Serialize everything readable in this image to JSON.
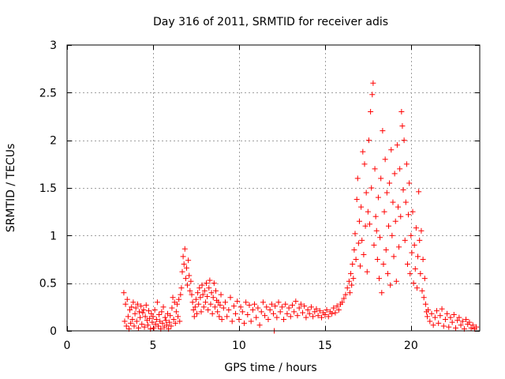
{
  "chart_data": {
    "type": "scatter",
    "title": "Day 316 of 2011, SRMTID for receiver adis",
    "xlabel": "GPS time / hours",
    "ylabel": "SRMTID / TECUs",
    "xlim": [
      0,
      24
    ],
    "ylim": [
      0,
      3
    ],
    "xticks": [
      0,
      5,
      10,
      15,
      20
    ],
    "yticks": [
      0,
      0.5,
      1,
      1.5,
      2,
      2.5,
      3
    ],
    "grid": true,
    "marker": "+",
    "color": "#ff0000",
    "series": [
      {
        "name": "SRMTID",
        "points": [
          [
            3.3,
            0.4
          ],
          [
            3.35,
            0.1
          ],
          [
            3.4,
            0.28
          ],
          [
            3.45,
            0.05
          ],
          [
            3.5,
            0.33
          ],
          [
            3.55,
            0.15
          ],
          [
            3.6,
            0.02
          ],
          [
            3.65,
            0.22
          ],
          [
            3.7,
            0.08
          ],
          [
            3.75,
            0.25
          ],
          [
            3.8,
            0.12
          ],
          [
            3.85,
            0.3
          ],
          [
            3.9,
            0.05
          ],
          [
            3.95,
            0.18
          ],
          [
            4.0,
            0.24
          ],
          [
            4.05,
            0.1
          ],
          [
            4.1,
            0.28
          ],
          [
            4.15,
            0.03
          ],
          [
            4.2,
            0.2
          ],
          [
            4.25,
            0.14
          ],
          [
            4.3,
            0.26
          ],
          [
            4.35,
            0.07
          ],
          [
            4.4,
            0.19
          ],
          [
            4.45,
            0.22
          ],
          [
            4.5,
            0.04
          ],
          [
            4.55,
            0.15
          ],
          [
            4.6,
            0.27
          ],
          [
            4.65,
            0.11
          ],
          [
            4.7,
            0.06
          ],
          [
            4.75,
            0.21
          ],
          [
            4.8,
            0.13
          ],
          [
            4.85,
            0.02
          ],
          [
            4.9,
            0.18
          ],
          [
            4.95,
            0.09
          ],
          [
            5.0,
            0.15
          ],
          [
            5.05,
            0.03
          ],
          [
            5.1,
            0.22
          ],
          [
            5.15,
            0.07
          ],
          [
            5.2,
            0.12
          ],
          [
            5.25,
            0.3
          ],
          [
            5.3,
            0.05
          ],
          [
            5.35,
            0.17
          ],
          [
            5.4,
            0.1
          ],
          [
            5.45,
            0.02
          ],
          [
            5.5,
            0.2
          ],
          [
            5.55,
            0.08
          ],
          [
            5.6,
            0.25
          ],
          [
            5.65,
            0.04
          ],
          [
            5.7,
            0.14
          ],
          [
            5.75,
            0.11
          ],
          [
            5.8,
            0.06
          ],
          [
            5.85,
            0.18
          ],
          [
            5.9,
            0.02
          ],
          [
            5.95,
            0.09
          ],
          [
            6.0,
            0.16
          ],
          [
            6.05,
            0.05
          ],
          [
            6.1,
            0.24
          ],
          [
            6.15,
            0.35
          ],
          [
            6.2,
            0.12
          ],
          [
            6.25,
            0.3
          ],
          [
            6.3,
            0.08
          ],
          [
            6.35,
            0.2
          ],
          [
            6.4,
            0.28
          ],
          [
            6.45,
            0.15
          ],
          [
            6.5,
            0.33
          ],
          [
            6.55,
            0.1
          ],
          [
            6.6,
            0.38
          ],
          [
            6.65,
            0.45
          ],
          [
            6.7,
            0.62
          ],
          [
            6.75,
            0.78
          ],
          [
            6.8,
            0.7
          ],
          [
            6.85,
            0.86
          ],
          [
            6.9,
            0.55
          ],
          [
            6.95,
            0.66
          ],
          [
            7.0,
            0.48
          ],
          [
            7.05,
            0.74
          ],
          [
            7.1,
            0.58
          ],
          [
            7.15,
            0.42
          ],
          [
            7.2,
            0.52
          ],
          [
            7.25,
            0.38
          ],
          [
            7.3,
            0.3
          ],
          [
            7.35,
            0.22
          ],
          [
            7.4,
            0.15
          ],
          [
            7.45,
            0.25
          ],
          [
            7.5,
            0.33
          ],
          [
            7.55,
            0.18
          ],
          [
            7.6,
            0.4
          ],
          [
            7.65,
            0.28
          ],
          [
            7.7,
            0.45
          ],
          [
            7.75,
            0.35
          ],
          [
            7.8,
            0.2
          ],
          [
            7.85,
            0.48
          ],
          [
            7.9,
            0.38
          ],
          [
            7.95,
            0.25
          ],
          [
            8.0,
            0.42
          ],
          [
            8.05,
            0.3
          ],
          [
            8.1,
            0.5
          ],
          [
            8.15,
            0.36
          ],
          [
            8.2,
            0.22
          ],
          [
            8.25,
            0.45
          ],
          [
            8.3,
            0.53
          ],
          [
            8.35,
            0.28
          ],
          [
            8.4,
            0.4
          ],
          [
            8.45,
            0.18
          ],
          [
            8.5,
            0.35
          ],
          [
            8.55,
            0.5
          ],
          [
            8.6,
            0.25
          ],
          [
            8.65,
            0.42
          ],
          [
            8.7,
            0.32
          ],
          [
            8.75,
            0.2
          ],
          [
            8.8,
            0.3
          ],
          [
            8.85,
            0.15
          ],
          [
            8.9,
            0.27
          ],
          [
            8.95,
            0.38
          ],
          [
            9.0,
            0.12
          ],
          [
            9.1,
            0.24
          ],
          [
            9.2,
            0.3
          ],
          [
            9.3,
            0.15
          ],
          [
            9.4,
            0.22
          ],
          [
            9.5,
            0.35
          ],
          [
            9.6,
            0.1
          ],
          [
            9.7,
            0.26
          ],
          [
            9.8,
            0.18
          ],
          [
            9.9,
            0.31
          ],
          [
            10.0,
            0.12
          ],
          [
            10.1,
            0.25
          ],
          [
            10.2,
            0.2
          ],
          [
            10.3,
            0.08
          ],
          [
            10.4,
            0.3
          ],
          [
            10.5,
            0.17
          ],
          [
            10.6,
            0.27
          ],
          [
            10.7,
            0.1
          ],
          [
            10.8,
            0.22
          ],
          [
            10.9,
            0.28
          ],
          [
            11.0,
            0.14
          ],
          [
            11.1,
            0.24
          ],
          [
            11.2,
            0.06
          ],
          [
            11.3,
            0.2
          ],
          [
            11.4,
            0.3
          ],
          [
            11.5,
            0.16
          ],
          [
            11.6,
            0.25
          ],
          [
            11.7,
            0.12
          ],
          [
            11.8,
            0.22
          ],
          [
            11.9,
            0.28
          ],
          [
            12.0,
            0.18
          ],
          [
            12.05,
            0.0
          ],
          [
            12.1,
            0.26
          ],
          [
            12.2,
            0.14
          ],
          [
            12.3,
            0.3
          ],
          [
            12.4,
            0.2
          ],
          [
            12.5,
            0.25
          ],
          [
            12.6,
            0.12
          ],
          [
            12.7,
            0.28
          ],
          [
            12.8,
            0.18
          ],
          [
            12.9,
            0.24
          ],
          [
            13.0,
            0.15
          ],
          [
            13.1,
            0.27
          ],
          [
            13.2,
            0.2
          ],
          [
            13.3,
            0.31
          ],
          [
            13.4,
            0.16
          ],
          [
            13.5,
            0.24
          ],
          [
            13.6,
            0.28
          ],
          [
            13.7,
            0.19
          ],
          [
            13.8,
            0.26
          ],
          [
            13.9,
            0.14
          ],
          [
            14.0,
            0.22
          ],
          [
            14.1,
            0.18
          ],
          [
            14.2,
            0.25
          ],
          [
            14.3,
            0.15
          ],
          [
            14.4,
            0.2
          ],
          [
            14.5,
            0.23
          ],
          [
            14.6,
            0.16
          ],
          [
            14.7,
            0.21
          ],
          [
            14.8,
            0.14
          ],
          [
            14.9,
            0.19
          ],
          [
            15.0,
            0.17
          ],
          [
            15.1,
            0.22
          ],
          [
            15.2,
            0.15
          ],
          [
            15.3,
            0.2
          ],
          [
            15.4,
            0.18
          ],
          [
            15.5,
            0.24
          ],
          [
            15.6,
            0.19
          ],
          [
            15.7,
            0.26
          ],
          [
            15.8,
            0.22
          ],
          [
            15.9,
            0.28
          ],
          [
            16.0,
            0.3
          ],
          [
            16.1,
            0.34
          ],
          [
            16.2,
            0.38
          ],
          [
            16.3,
            0.45
          ],
          [
            16.4,
            0.52
          ],
          [
            16.45,
            0.4
          ],
          [
            16.5,
            0.6
          ],
          [
            16.55,
            0.48
          ],
          [
            16.6,
            0.7
          ],
          [
            16.65,
            0.55
          ],
          [
            16.7,
            0.85
          ],
          [
            16.75,
            1.02
          ],
          [
            16.8,
            0.75
          ],
          [
            16.85,
            1.38
          ],
          [
            16.9,
            1.6
          ],
          [
            16.95,
            0.92
          ],
          [
            17.0,
            1.15
          ],
          [
            17.05,
            0.68
          ],
          [
            17.1,
            1.3
          ],
          [
            17.15,
            0.95
          ],
          [
            17.2,
            1.88
          ],
          [
            17.25,
            0.8
          ],
          [
            17.3,
            1.75
          ],
          [
            17.35,
            1.1
          ],
          [
            17.4,
            1.45
          ],
          [
            17.45,
            0.62
          ],
          [
            17.5,
            1.25
          ],
          [
            17.55,
            2.0
          ],
          [
            17.6,
            1.12
          ],
          [
            17.65,
            2.3
          ],
          [
            17.7,
            1.5
          ],
          [
            17.75,
            2.48
          ],
          [
            17.8,
            2.6
          ],
          [
            17.85,
            0.9
          ],
          [
            17.9,
            1.7
          ],
          [
            17.95,
            1.2
          ],
          [
            18.0,
            1.05
          ],
          [
            18.05,
            0.75
          ],
          [
            18.1,
            1.4
          ],
          [
            18.15,
            0.55
          ],
          [
            18.2,
            0.98
          ],
          [
            18.25,
            1.6
          ],
          [
            18.3,
            0.4
          ],
          [
            18.35,
            2.1
          ],
          [
            18.4,
            0.7
          ],
          [
            18.45,
            1.25
          ],
          [
            18.5,
            1.8
          ],
          [
            18.55,
            0.85
          ],
          [
            18.6,
            1.45
          ],
          [
            18.65,
            0.6
          ],
          [
            18.7,
            1.1
          ],
          [
            18.75,
            1.55
          ],
          [
            18.8,
            0.48
          ],
          [
            18.85,
            1.9
          ],
          [
            18.9,
            1.0
          ],
          [
            18.95,
            1.35
          ],
          [
            19.0,
            0.78
          ],
          [
            19.05,
            1.65
          ],
          [
            19.1,
            1.15
          ],
          [
            19.15,
            0.52
          ],
          [
            19.2,
            1.95
          ],
          [
            19.25,
            1.3
          ],
          [
            19.3,
            0.88
          ],
          [
            19.35,
            1.7
          ],
          [
            19.4,
            1.2
          ],
          [
            19.45,
            2.3
          ],
          [
            19.5,
            2.15
          ],
          [
            19.55,
            1.48
          ],
          [
            19.6,
            2.0
          ],
          [
            19.65,
            0.95
          ],
          [
            19.7,
            1.35
          ],
          [
            19.75,
            1.75
          ],
          [
            19.8,
            0.7
          ],
          [
            19.85,
            1.22
          ],
          [
            19.9,
            1.55
          ],
          [
            19.95,
            0.6
          ],
          [
            20.0,
            1.0
          ],
          [
            20.05,
            0.82
          ],
          [
            20.1,
            1.25
          ],
          [
            20.15,
            0.5
          ],
          [
            20.2,
            0.9
          ],
          [
            20.25,
            0.65
          ],
          [
            20.3,
            1.08
          ],
          [
            20.35,
            0.45
          ],
          [
            20.4,
            0.78
          ],
          [
            20.45,
            1.46
          ],
          [
            20.5,
            0.95
          ],
          [
            20.55,
            0.6
          ],
          [
            20.6,
            1.05
          ],
          [
            20.65,
            0.42
          ],
          [
            20.7,
            0.75
          ],
          [
            20.75,
            0.35
          ],
          [
            20.8,
            0.55
          ],
          [
            20.85,
            0.28
          ],
          [
            20.9,
            0.2
          ],
          [
            20.95,
            0.15
          ],
          [
            21.0,
            0.22
          ],
          [
            21.1,
            0.1
          ],
          [
            21.2,
            0.18
          ],
          [
            21.3,
            0.06
          ],
          [
            21.4,
            0.14
          ],
          [
            21.5,
            0.21
          ],
          [
            21.6,
            0.08
          ],
          [
            21.7,
            0.16
          ],
          [
            21.8,
            0.23
          ],
          [
            21.9,
            0.05
          ],
          [
            22.0,
            0.12
          ],
          [
            22.1,
            0.18
          ],
          [
            22.2,
            0.04
          ],
          [
            22.3,
            0.14
          ],
          [
            22.4,
            0.09
          ],
          [
            22.5,
            0.17
          ],
          [
            22.6,
            0.03
          ],
          [
            22.7,
            0.11
          ],
          [
            22.8,
            0.14
          ],
          [
            22.9,
            0.06
          ],
          [
            23.0,
            0.1
          ],
          [
            23.1,
            0.02
          ],
          [
            23.2,
            0.12
          ],
          [
            23.3,
            0.07
          ],
          [
            23.4,
            0.09
          ],
          [
            23.5,
            0.03
          ],
          [
            23.6,
            0.06
          ],
          [
            23.7,
            0.02
          ],
          [
            23.8,
            0.04
          ]
        ]
      }
    ]
  }
}
